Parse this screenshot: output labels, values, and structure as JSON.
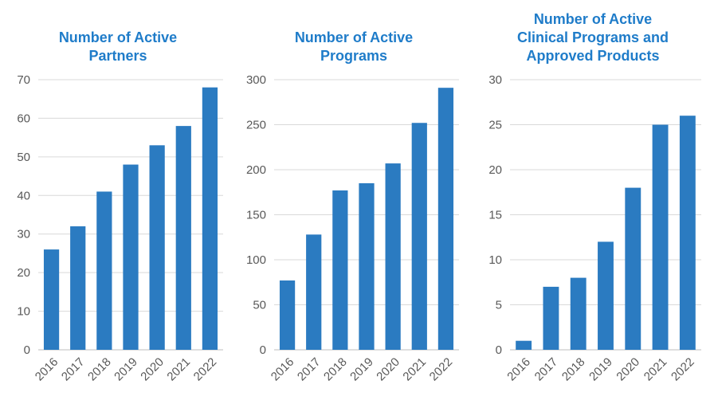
{
  "colors": {
    "bar": "#2b7bc1",
    "title": "#1f7cc9",
    "tick_label": "#595959",
    "gridline": "#d9d9d9",
    "axis_line": "#bfbfbf",
    "background": "#ffffff"
  },
  "chart_data": [
    {
      "type": "bar",
      "title": "Number of Active Partners",
      "title_lines": [
        "Number of Active",
        "Partners"
      ],
      "categories": [
        "2016",
        "2017",
        "2018",
        "2019",
        "2020",
        "2021",
        "2022"
      ],
      "values": [
        26,
        32,
        41,
        48,
        53,
        58,
        68
      ],
      "ylim": [
        0,
        70
      ],
      "yticks": [
        0,
        10,
        20,
        30,
        40,
        50,
        60,
        70
      ],
      "grid": true,
      "legend": "none",
      "bar_color": "#2b7bc1"
    },
    {
      "type": "bar",
      "title": "Number of Active Programs",
      "title_lines": [
        "Number of Active",
        "Programs"
      ],
      "categories": [
        "2016",
        "2017",
        "2018",
        "2019",
        "2020",
        "2021",
        "2022"
      ],
      "values": [
        77,
        128,
        177,
        185,
        207,
        252,
        291
      ],
      "ylim": [
        0,
        300
      ],
      "yticks": [
        0,
        50,
        100,
        150,
        200,
        250,
        300
      ],
      "grid": true,
      "legend": "none",
      "bar_color": "#2b7bc1"
    },
    {
      "type": "bar",
      "title": "Number of Active Clinical Programs and Approved Products",
      "title_lines": [
        "Number of Active",
        "Clinical Programs and",
        "Approved Products"
      ],
      "categories": [
        "2016",
        "2017",
        "2018",
        "2019",
        "2020",
        "2021",
        "2022"
      ],
      "values": [
        1,
        7,
        8,
        12,
        18,
        25,
        26
      ],
      "ylim": [
        0,
        30
      ],
      "yticks": [
        0,
        5,
        10,
        15,
        20,
        25,
        30
      ],
      "grid": true,
      "legend": "none",
      "bar_color": "#2b7bc1"
    }
  ]
}
